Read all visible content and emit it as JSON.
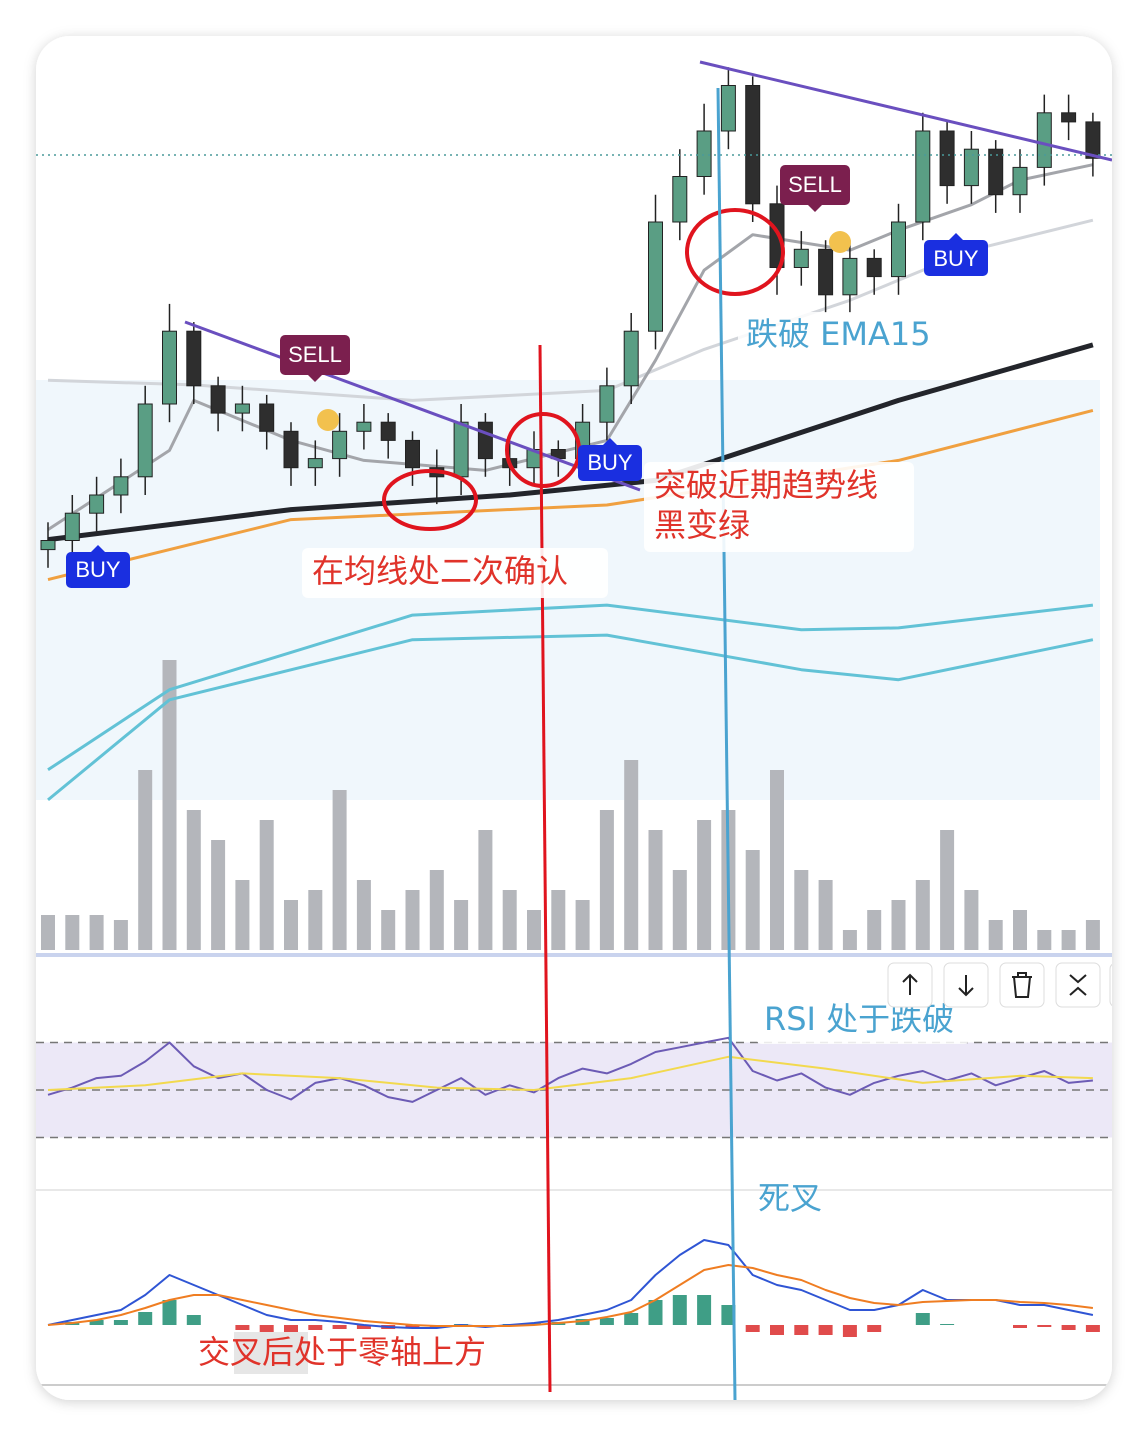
{
  "chart_data": [
    {
      "type": "bar",
      "ylim": [
        0,
        300
      ],
      "color": "#b4b6bb",
      "values": [
        35,
        35,
        35,
        30,
        180,
        290,
        140,
        110,
        70,
        130,
        50,
        60,
        160,
        70,
        40,
        60,
        80,
        50,
        120,
        60,
        40,
        60,
        50,
        140,
        190,
        120,
        80,
        130,
        140,
        100,
        180,
        80,
        70,
        20,
        40,
        50,
        70,
        120,
        60,
        30,
        40,
        20,
        20,
        30
      ]
    },
    {
      "type": "candlestick",
      "ylim": [
        0,
        100
      ],
      "up_color": "#5a9e84",
      "down_color": "#2e2e2e",
      "opens": [
        44,
        45,
        48,
        50,
        52,
        60,
        68,
        62,
        59,
        60,
        57,
        53,
        54,
        57,
        58,
        56,
        53,
        52,
        58,
        54,
        53,
        55,
        54,
        58,
        62,
        68,
        80,
        85,
        90,
        95,
        82,
        75,
        77,
        72,
        76,
        74,
        80,
        90,
        84,
        88,
        83,
        86,
        92,
        91
      ],
      "highs": [
        47,
        50,
        52,
        54,
        62,
        71,
        69,
        63,
        62,
        61,
        58,
        56,
        59,
        60,
        59,
        57,
        55,
        60,
        59,
        56,
        57,
        56,
        60,
        64,
        70,
        83,
        88,
        93,
        97,
        96,
        84,
        79,
        78,
        78,
        77,
        82,
        92,
        91,
        90,
        89,
        88,
        94,
        94,
        92
      ],
      "lows": [
        42,
        43,
        46,
        48,
        50,
        58,
        60,
        57,
        57,
        55,
        51,
        51,
        52,
        55,
        54,
        51,
        49,
        50,
        52,
        51,
        51,
        52,
        52,
        56,
        60,
        66,
        78,
        83,
        88,
        80,
        72,
        73,
        70,
        70,
        72,
        72,
        78,
        82,
        82,
        81,
        81,
        84,
        89,
        85
      ],
      "closes": [
        45,
        48,
        50,
        52,
        60,
        68,
        62,
        59,
        60,
        57,
        53,
        54,
        57,
        58,
        56,
        53,
        52,
        58,
        54,
        53,
        55,
        54,
        58,
        62,
        68,
        80,
        85,
        90,
        95,
        82,
        75,
        77,
        72,
        76,
        74,
        80,
        90,
        84,
        88,
        83,
        86,
        92,
        91,
        87
      ],
      "lines": [
        {
          "color": "#62c2d6",
          "x": [
            0,
            5,
            15,
            23,
            31,
            35,
            43
          ],
          "values": [
            16.5,
            27.5,
            34.1,
            34.6,
            30.8,
            29.7,
            34.1
          ]
        },
        {
          "color": "#62c2d6",
          "x": [
            0,
            5,
            15,
            23,
            31,
            35,
            43
          ],
          "values": [
            19.8,
            28.6,
            36.8,
            37.9,
            35.2,
            35.4,
            37.9
          ]
        },
        {
          "color": "#d2d5da",
          "x": [
            0,
            6,
            15,
            23,
            27,
            33,
            38,
            43
          ],
          "values": [
            62.6,
            62.1,
            60.4,
            61.5,
            66,
            71.4,
            76.9,
            80.2
          ]
        },
        {
          "color": "#f0a040",
          "x": [
            0,
            10,
            23,
            35,
            43
          ],
          "values": [
            40.7,
            47.3,
            48.9,
            53.8,
            59.3
          ]
        },
        {
          "color": "#a3a5aa",
          "x": [
            0,
            5,
            6,
            10,
            13,
            18,
            23,
            25,
            27,
            29,
            33,
            35,
            38,
            40,
            43
          ],
          "values": [
            46.2,
            54.9,
            60.4,
            56,
            53.8,
            52.7,
            56,
            64.8,
            74.7,
            78.6,
            76.9,
            79.1,
            81.9,
            84.6,
            86.3
          ]
        },
        {
          "color": "#23252b",
          "x": [
            0,
            10,
            19,
            25,
            30,
            35,
            43
          ],
          "values": [
            45.1,
            48.4,
            50,
            51.6,
            56,
            60.4,
            66.5
          ]
        }
      ]
    },
    {
      "type": "line",
      "ylim": [
        10,
        90
      ],
      "yticks": [
        30,
        50,
        70
      ],
      "band_color": "#ece8f7",
      "series": [
        {
          "color": "#6c5bb5",
          "values": [
            48,
            51,
            55,
            56,
            62,
            70,
            60,
            55,
            57,
            50,
            46,
            53,
            55,
            52,
            47,
            45,
            50,
            55,
            48,
            52,
            49,
            55,
            59,
            57,
            61,
            66,
            68,
            70,
            72,
            58,
            54,
            57,
            51,
            48,
            53,
            56,
            58,
            54,
            57,
            52,
            55,
            58,
            53,
            54
          ]
        },
        {
          "color": "#f2d94e",
          "x": [
            0,
            4,
            8,
            12,
            16,
            20,
            24,
            28,
            32,
            36,
            40,
            43
          ],
          "values": [
            50,
            52,
            57,
            55,
            51,
            50,
            55,
            64,
            59,
            53,
            56,
            55
          ]
        }
      ]
    },
    {
      "type": "macd",
      "ylim": [
        -6,
        13
      ],
      "up_color": "#3f9e86",
      "down_color": "#e04b4b",
      "histogram": [
        0,
        0.3,
        0.5,
        0.5,
        1.3,
        2.5,
        1,
        0,
        -0.5,
        -1,
        -1,
        -0.5,
        -0.4,
        -0.4,
        -0.4,
        -0.3,
        -0.2,
        0.1,
        -0.1,
        0.1,
        0.2,
        0.3,
        0.6,
        0.7,
        1.2,
        2.5,
        3,
        3,
        2,
        -0.7,
        -1,
        -1,
        -1,
        -1.2,
        -0.7,
        0,
        1.2,
        0.1,
        0,
        0,
        -0.3,
        -0.2,
        -0.5,
        -0.7
      ],
      "series": [
        {
          "color": "#2f55d4",
          "values": [
            0,
            0.5,
            1,
            1.5,
            3,
            5,
            4,
            3,
            2,
            1,
            0.5,
            0.5,
            0.3,
            0,
            -0.2,
            -0.3,
            -0.3,
            0,
            -0.2,
            0,
            0.2,
            0.5,
            1,
            1.5,
            2.5,
            5,
            7,
            8.5,
            8,
            5,
            4,
            3.5,
            2.5,
            1.5,
            1.5,
            2,
            3.5,
            2.5,
            2.5,
            2.5,
            2,
            2,
            1.5,
            1
          ]
        },
        {
          "color": "#ef7d22",
          "values": [
            0,
            0.2,
            0.5,
            1,
            1.7,
            2.5,
            3,
            3,
            2.5,
            2,
            1.5,
            1,
            0.7,
            0.4,
            0.2,
            0,
            -0.1,
            -0.1,
            -0.1,
            -0.1,
            0,
            0.2,
            0.4,
            0.8,
            1.3,
            2.5,
            4,
            5.5,
            6,
            5.7,
            5,
            4.5,
            3.5,
            2.7,
            2.2,
            2,
            2.3,
            2.4,
            2.5,
            2.5,
            2.3,
            2.2,
            2,
            1.7
          ]
        }
      ]
    }
  ],
  "labels": [
    "SELL",
    "SELL",
    "BUY",
    "BUY",
    "BUY",
    "跌破 EMA15",
    "突破近期趋势线",
    "黑变绿",
    "在均线处二次确认",
    "RSI 处于跌破",
    "死叉",
    "交叉后处于零轴上方"
  ]
}
